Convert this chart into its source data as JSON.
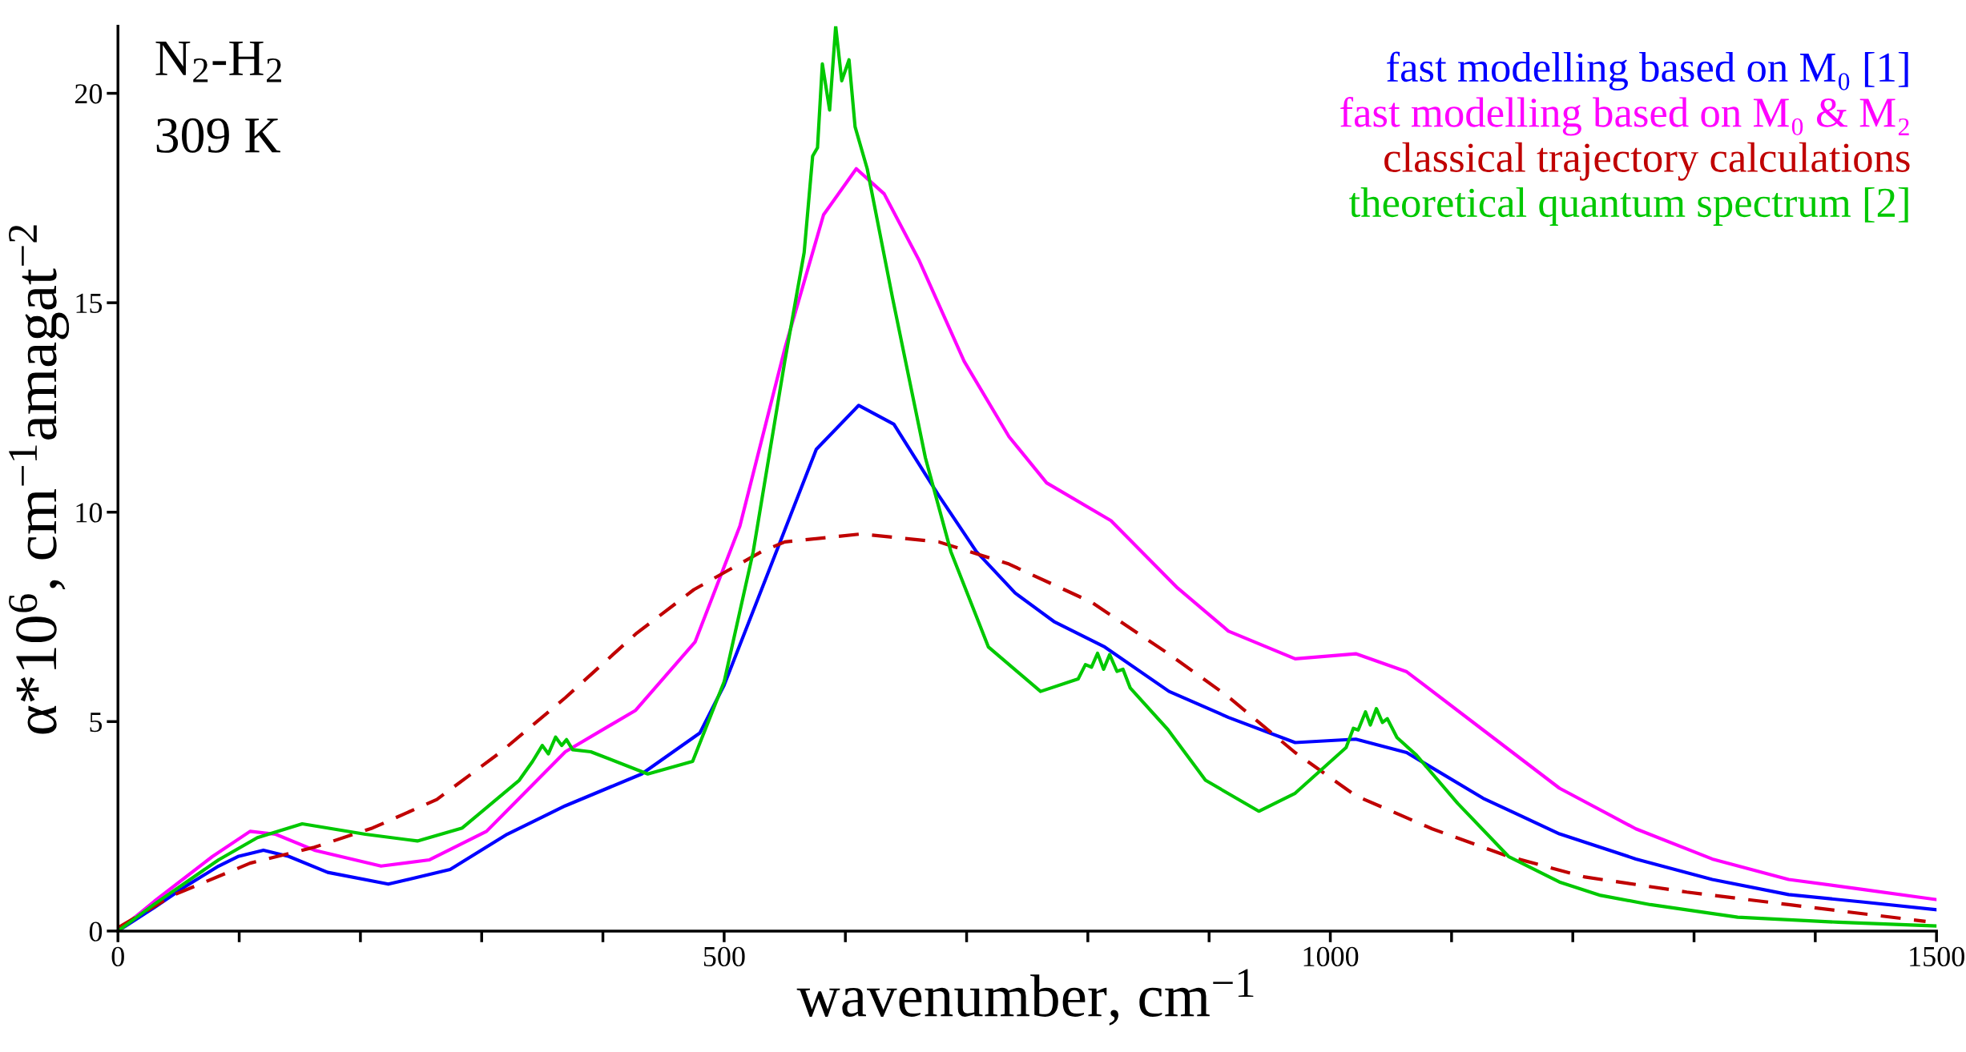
{
  "chart_data": {
    "type": "line",
    "xlabel": "wavenumber, cm$^{−1}$",
    "ylabel": "α*10$^{6}$, cm$^{−1}$amagat$^{−2}$",
    "annotations": [
      "N$_{2}$-H$_{2}$",
      "309 K"
    ],
    "xlim": [
      0,
      1500
    ],
    "ylim": [
      0,
      21.6
    ],
    "xticks": [
      0,
      {
        "value": 100,
        "label": null
      },
      {
        "value": 200,
        "label": null
      },
      {
        "value": 300,
        "label": null
      },
      {
        "value": 400,
        "label": null
      },
      500,
      {
        "value": 600,
        "label": null
      },
      {
        "value": 700,
        "label": null
      },
      {
        "value": 800,
        "label": null
      },
      {
        "value": 900,
        "label": null
      },
      1000,
      {
        "value": 1100,
        "label": null
      },
      {
        "value": 1200,
        "label": null
      },
      {
        "value": 1300,
        "label": null
      },
      {
        "value": 1400,
        "label": null
      },
      1500
    ],
    "yticks": [
      0,
      5,
      10,
      15,
      20
    ],
    "grid": false,
    "legend": "top right",
    "series": [
      {
        "name": "fast modelling based on M₀ [1]",
        "color": "#0000ff",
        "line_style": "solid",
        "x": [
          0,
          30,
          57,
          83,
          99,
          120,
          141,
          173,
          223,
          274,
          321,
          369,
          432,
          480,
          500,
          545,
          576,
          611,
          640,
          677,
          708,
          740,
          772,
          814,
          867,
          916,
          971,
          1021,
          1063,
          1126,
          1189,
          1252,
          1315,
          1378,
          1440,
          1500
        ],
        "values": [
          0,
          0.56,
          1.09,
          1.55,
          1.78,
          1.93,
          1.78,
          1.4,
          1.12,
          1.47,
          2.31,
          2.99,
          3.75,
          4.73,
          5.87,
          9.2,
          11.5,
          12.55,
          12.1,
          10.4,
          9.06,
          8.07,
          7.39,
          6.78,
          5.72,
          5.1,
          4.5,
          4.58,
          4.26,
          3.17,
          2.32,
          1.72,
          1.23,
          0.87,
          0.69,
          0.51
        ]
      },
      {
        "name": "fast modelling based on M₀ & M₂",
        "color": "#ff00ff",
        "line_style": "solid",
        "x": [
          0,
          30,
          78,
          109,
          130,
          162,
          217,
          257,
          304,
          369,
          427,
          476,
          513,
          550,
          582,
          609,
          632,
          661,
          698,
          735,
          766,
          819,
          874,
          916,
          971,
          1021,
          1063,
          1126,
          1189,
          1252,
          1315,
          1378,
          1440,
          1500
        ],
        "values": [
          0,
          0.71,
          1.78,
          2.38,
          2.31,
          1.93,
          1.55,
          1.7,
          2.38,
          4.28,
          5.27,
          6.9,
          9.67,
          13.9,
          17.1,
          18.2,
          17.6,
          16.0,
          13.6,
          11.8,
          10.7,
          9.8,
          8.19,
          7.16,
          6.5,
          6.62,
          6.19,
          4.8,
          3.41,
          2.44,
          1.72,
          1.23,
          0.99,
          0.75
        ]
      },
      {
        "name": "classical trajectory calculations",
        "color": "#c00000",
        "line_style": "dashed",
        "x": [
          0,
          46,
          109,
          162,
          210,
          263,
          316,
          369,
          427,
          475,
          531,
          550,
          613,
          677,
          735,
          803,
          866,
          916,
          971,
          1021,
          1084,
          1147,
          1210,
          1294,
          1378,
          1491
        ],
        "values": [
          0.08,
          0.86,
          1.62,
          2.0,
          2.46,
          3.14,
          4.28,
          5.57,
          7.09,
          8.15,
          9.06,
          9.29,
          9.48,
          9.29,
          8.76,
          7.85,
          6.63,
          5.59,
          4.26,
          3.23,
          2.44,
          1.78,
          1.29,
          0.93,
          0.63,
          0.23
        ]
      },
      {
        "name": "theoretical quantum spectrum [2]",
        "color": "#00c800",
        "line_style": "solid",
        "x": [
          0,
          30,
          83,
          115,
          152,
          204,
          247,
          284,
          331,
          342,
          350,
          355,
          361,
          366,
          370,
          375,
          390,
          437,
          474,
          500,
          524,
          550,
          566,
          573,
          577,
          581,
          587,
          592,
          597,
          603,
          608,
          618,
          639,
          666,
          687,
          718,
          761,
          792,
          798,
          803,
          808,
          813,
          818,
          824,
          829,
          835,
          866,
          897,
          941,
          971,
          1013,
          1019,
          1023,
          1029,
          1033,
          1038,
          1043,
          1047,
          1055,
          1071,
          1105,
          1147,
          1189,
          1223,
          1264,
          1336,
          1419,
          1500
        ],
        "values": [
          0,
          0.64,
          1.7,
          2.23,
          2.56,
          2.31,
          2.15,
          2.46,
          3.6,
          4.05,
          4.43,
          4.23,
          4.63,
          4.43,
          4.57,
          4.33,
          4.28,
          3.75,
          4.05,
          5.95,
          9.06,
          13.6,
          16.2,
          18.5,
          18.7,
          20.7,
          19.6,
          21.6,
          20.3,
          20.8,
          19.2,
          18.2,
          15.1,
          11.3,
          9.06,
          6.78,
          5.72,
          6.02,
          6.36,
          6.3,
          6.63,
          6.25,
          6.6,
          6.2,
          6.25,
          5.8,
          4.81,
          3.6,
          2.86,
          3.29,
          4.38,
          4.84,
          4.8,
          5.23,
          4.92,
          5.31,
          4.98,
          5.07,
          4.62,
          4.2,
          3.05,
          1.78,
          1.17,
          0.85,
          0.63,
          0.33,
          0.21,
          0.12
        ]
      }
    ]
  }
}
